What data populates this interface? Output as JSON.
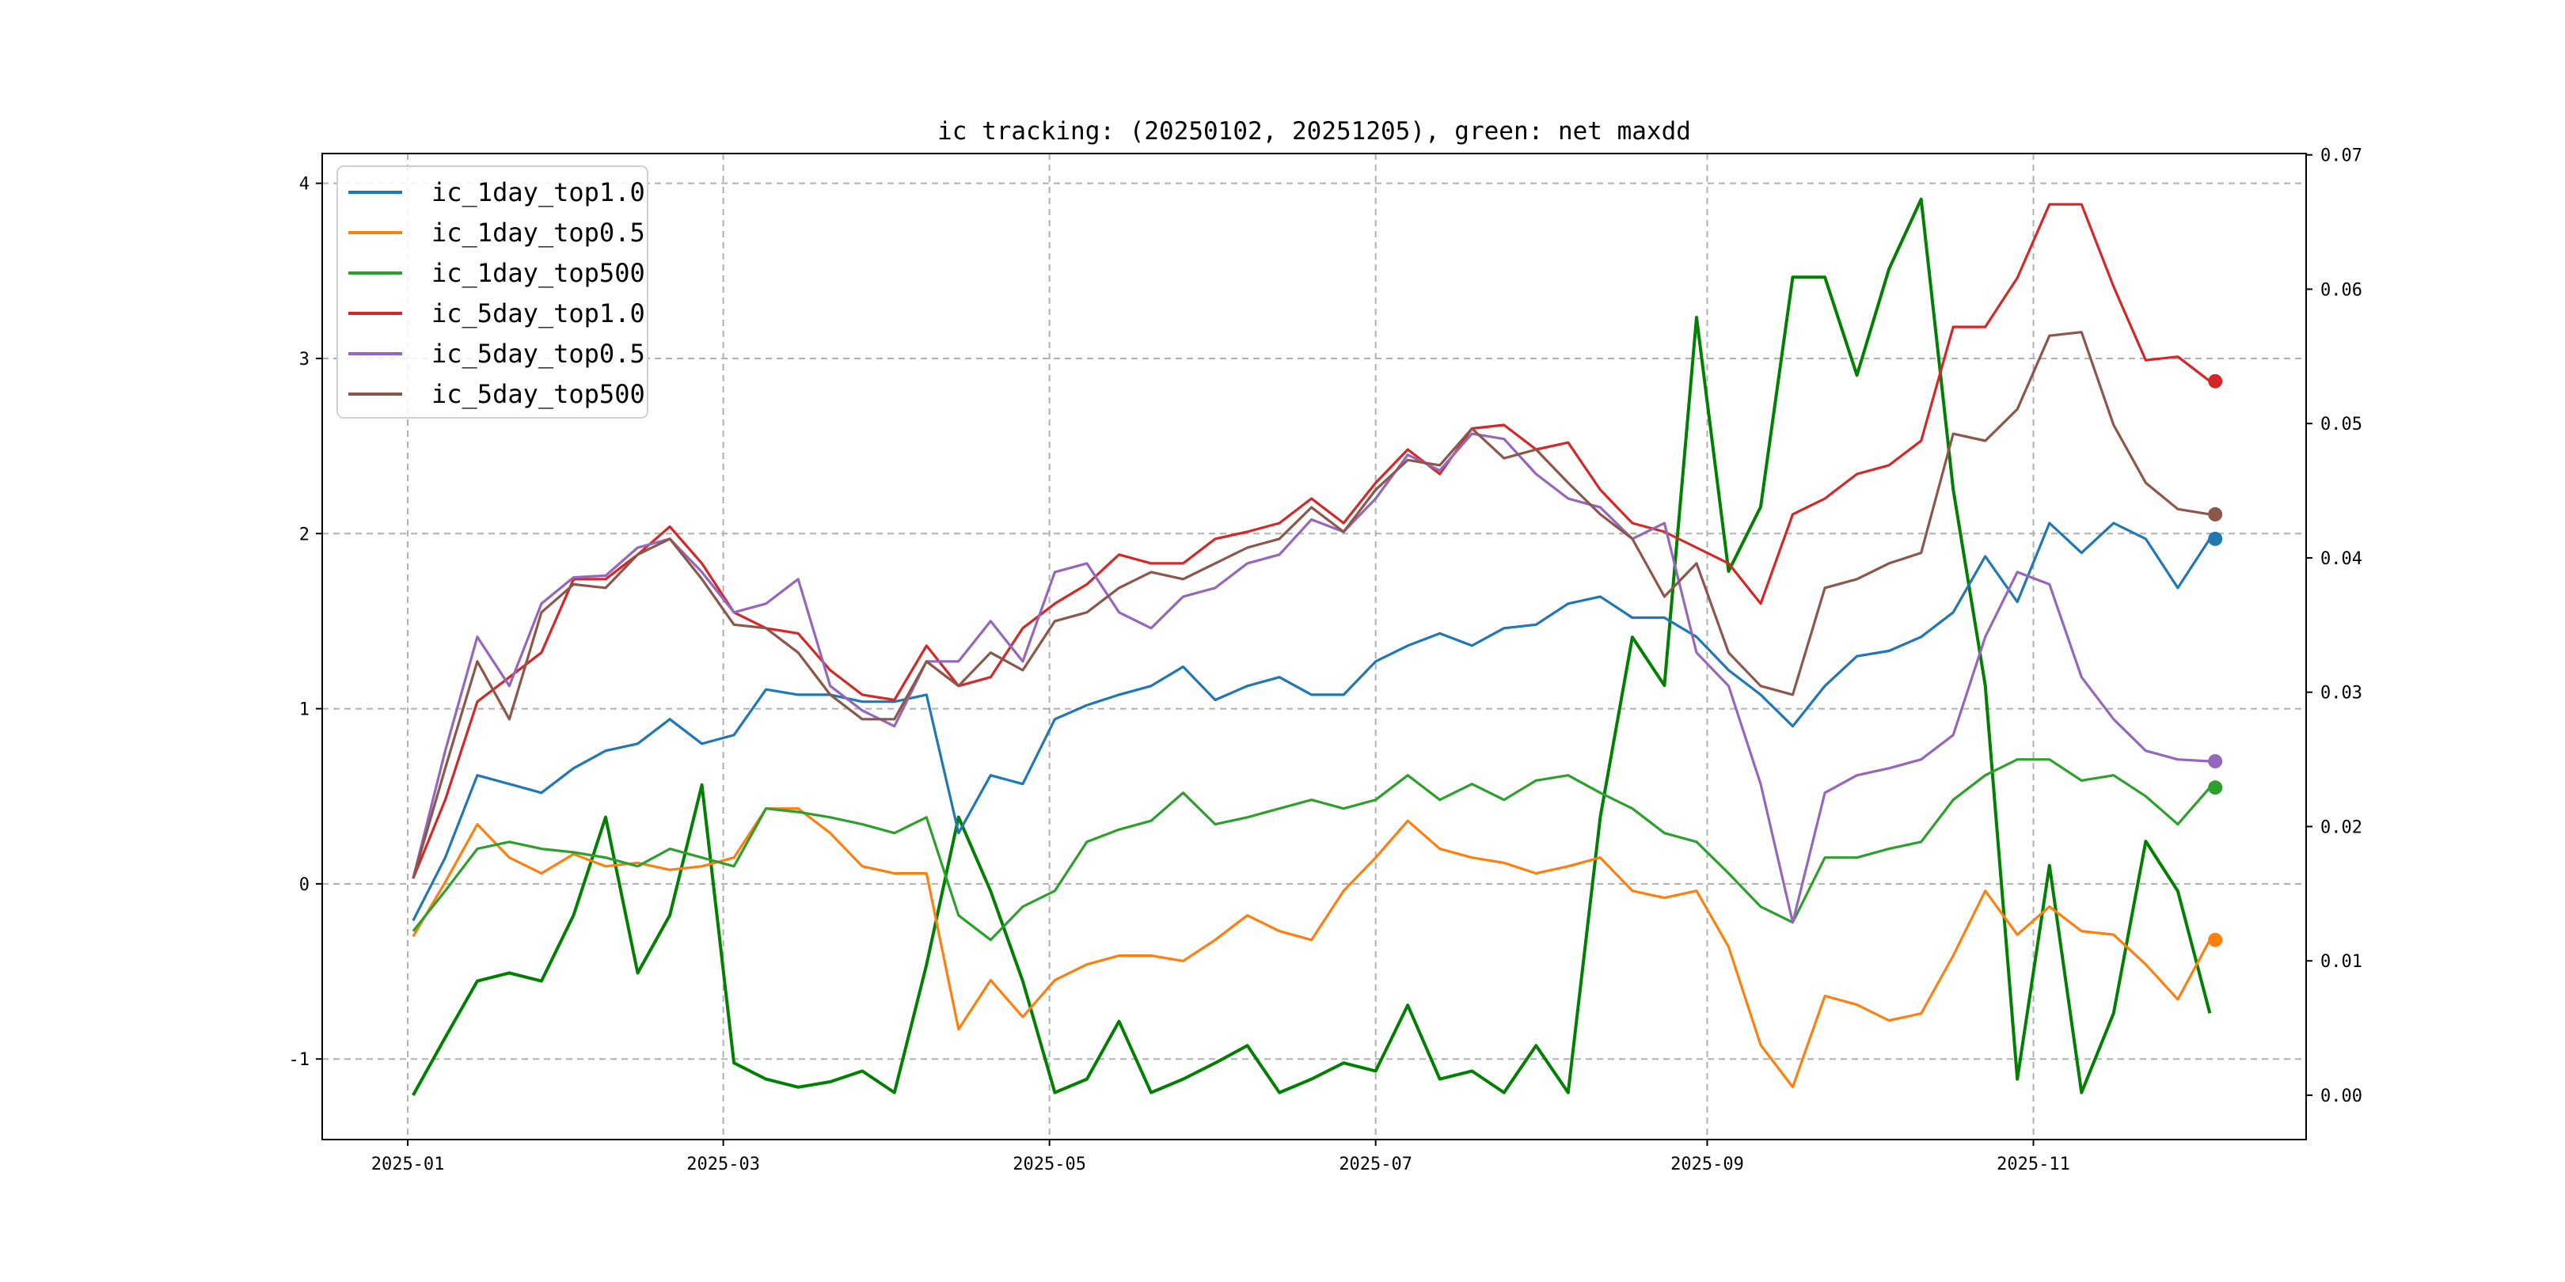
{
  "chart_data": {
    "type": "line",
    "title": "ic tracking: (20250102, 20251205), green: net maxdd",
    "xlabel": "",
    "ylabel": "",
    "x_unit": "days since 2025-01-01",
    "xlim": [
      -16,
      355
    ],
    "ylim": [
      -1.46,
      4.17
    ],
    "ylim_right": [
      -0.0033,
      0.0701
    ],
    "grid": true,
    "legend_position": "top-left",
    "x_ticks": [
      {
        "label": "2025-01",
        "day": 0
      },
      {
        "label": "2025-03",
        "day": 59
      },
      {
        "label": "2025-05",
        "day": 120
      },
      {
        "label": "2025-07",
        "day": 181
      },
      {
        "label": "2025-09",
        "day": 243
      },
      {
        "label": "2025-11",
        "day": 304
      }
    ],
    "y_ticks": [
      {
        "label": "-1",
        "value": -1
      },
      {
        "label": "0",
        "value": 0
      },
      {
        "label": "1",
        "value": 1
      },
      {
        "label": "2",
        "value": 2
      },
      {
        "label": "3",
        "value": 3
      },
      {
        "label": "4",
        "value": 4
      }
    ],
    "y_ticks_right": [
      {
        "label": "0.00",
        "value": 0
      },
      {
        "label": "0.01",
        "value": 0.01
      },
      {
        "label": "0.02",
        "value": 0.02
      },
      {
        "label": "0.03",
        "value": 0.03
      },
      {
        "label": "0.04",
        "value": 0.04
      },
      {
        "label": "0.05",
        "value": 0.05
      },
      {
        "label": "0.06",
        "value": 0.06
      },
      {
        "label": "0.07",
        "value": 0.07
      }
    ],
    "x": [
      1,
      7,
      13,
      19,
      25,
      31,
      37,
      43,
      49,
      55,
      61,
      67,
      73,
      79,
      85,
      91,
      97,
      103,
      109,
      115,
      121,
      127,
      133,
      139,
      145,
      151,
      157,
      163,
      169,
      175,
      181,
      187,
      193,
      199,
      205,
      211,
      217,
      223,
      229,
      235,
      241,
      247,
      253,
      259,
      265,
      271,
      277,
      283,
      289,
      295,
      301,
      307,
      313,
      319,
      325,
      331,
      337
    ],
    "series": [
      {
        "name": "ic_1day_top1.0",
        "color": "#1f77b4",
        "axis": "left",
        "end_marker": true,
        "values": [
          -0.21,
          0.15,
          0.62,
          0.57,
          0.52,
          0.66,
          0.76,
          0.8,
          0.94,
          0.8,
          0.85,
          1.11,
          1.08,
          1.08,
          1.04,
          1.04,
          1.08,
          0.29,
          0.62,
          0.57,
          0.94,
          1.02,
          1.08,
          1.13,
          1.24,
          1.05,
          1.13,
          1.18,
          1.08,
          1.08,
          1.27,
          1.36,
          1.43,
          1.36,
          1.46,
          1.48,
          1.6,
          1.64,
          1.52,
          1.52,
          1.41,
          1.22,
          1.08,
          0.9,
          1.13,
          1.3,
          1.33,
          1.41,
          1.55,
          1.87,
          1.61,
          2.06,
          1.89,
          2.06,
          1.97,
          1.69,
          1.97
        ]
      },
      {
        "name": "ic_1day_top0.5",
        "color": "#ff7f0e",
        "axis": "left",
        "end_marker": true,
        "values": [
          -0.3,
          0.01,
          0.34,
          0.15,
          0.06,
          0.17,
          0.1,
          0.12,
          0.08,
          0.1,
          0.15,
          0.43,
          0.43,
          0.29,
          0.1,
          0.06,
          0.06,
          -0.83,
          -0.55,
          -0.76,
          -0.55,
          -0.46,
          -0.41,
          -0.41,
          -0.44,
          -0.32,
          -0.18,
          -0.27,
          -0.32,
          -0.04,
          0.15,
          0.36,
          0.2,
          0.15,
          0.12,
          0.06,
          0.1,
          0.15,
          -0.04,
          -0.08,
          -0.04,
          -0.36,
          -0.92,
          -1.16,
          -0.64,
          -0.69,
          -0.78,
          -0.74,
          -0.41,
          -0.04,
          -0.29,
          -0.13,
          -0.27,
          -0.29,
          -0.46,
          -0.66,
          -0.32
        ]
      },
      {
        "name": "ic_1day_top500",
        "color": "#2ca02c",
        "axis": "left",
        "end_marker": true,
        "values": [
          -0.27,
          -0.04,
          0.2,
          0.24,
          0.2,
          0.18,
          0.15,
          0.1,
          0.2,
          0.15,
          0.1,
          0.43,
          0.41,
          0.38,
          0.34,
          0.29,
          0.38,
          -0.18,
          -0.32,
          -0.13,
          -0.04,
          0.24,
          0.31,
          0.36,
          0.52,
          0.34,
          0.38,
          0.43,
          0.48,
          0.43,
          0.48,
          0.62,
          0.48,
          0.57,
          0.48,
          0.59,
          0.62,
          0.52,
          0.43,
          0.29,
          0.24,
          0.06,
          -0.13,
          -0.22,
          0.15,
          0.15,
          0.2,
          0.24,
          0.48,
          0.62,
          0.71,
          0.71,
          0.59,
          0.62,
          0.5,
          0.34,
          0.55
        ]
      },
      {
        "name": "ic_5day_top1.0",
        "color": "#d62728",
        "axis": "left",
        "end_marker": true,
        "values": [
          0.03,
          0.48,
          1.04,
          1.18,
          1.32,
          1.74,
          1.74,
          1.88,
          2.04,
          1.83,
          1.55,
          1.46,
          1.43,
          1.22,
          1.08,
          1.05,
          1.36,
          1.13,
          1.18,
          1.46,
          1.6,
          1.71,
          1.88,
          1.83,
          1.83,
          1.97,
          2.01,
          2.06,
          2.2,
          2.06,
          2.29,
          2.48,
          2.34,
          2.6,
          2.62,
          2.48,
          2.52,
          2.25,
          2.06,
          2.01,
          1.92,
          1.83,
          1.6,
          2.11,
          2.2,
          2.34,
          2.39,
          2.53,
          3.18,
          3.18,
          3.46,
          3.88,
          3.88,
          3.41,
          2.99,
          3.01,
          2.87
        ]
      },
      {
        "name": "ic_5day_top0.5",
        "color": "#9467bd",
        "axis": "left",
        "end_marker": true,
        "values": [
          0.03,
          0.76,
          1.41,
          1.13,
          1.6,
          1.75,
          1.76,
          1.92,
          1.97,
          1.78,
          1.55,
          1.6,
          1.74,
          1.13,
          0.99,
          0.9,
          1.27,
          1.27,
          1.5,
          1.27,
          1.78,
          1.83,
          1.55,
          1.46,
          1.64,
          1.69,
          1.83,
          1.88,
          2.08,
          2.01,
          2.2,
          2.45,
          2.36,
          2.57,
          2.54,
          2.34,
          2.2,
          2.15,
          1.97,
          2.06,
          1.32,
          1.13,
          0.57,
          -0.22,
          0.52,
          0.62,
          0.66,
          0.71,
          0.85,
          1.41,
          1.78,
          1.71,
          1.18,
          0.94,
          0.76,
          0.71,
          0.7
        ]
      },
      {
        "name": "ic_5day_top500",
        "color": "#8c564b",
        "axis": "left",
        "end_marker": true,
        "values": [
          0.03,
          0.66,
          1.27,
          0.94,
          1.55,
          1.71,
          1.69,
          1.88,
          1.97,
          1.74,
          1.48,
          1.46,
          1.32,
          1.08,
          0.94,
          0.94,
          1.27,
          1.13,
          1.32,
          1.22,
          1.5,
          1.55,
          1.69,
          1.78,
          1.74,
          1.83,
          1.92,
          1.97,
          2.15,
          2.01,
          2.25,
          2.42,
          2.39,
          2.6,
          2.43,
          2.48,
          2.29,
          2.11,
          1.97,
          1.64,
          1.83,
          1.32,
          1.13,
          1.08,
          1.69,
          1.74,
          1.83,
          1.89,
          2.57,
          2.53,
          2.71,
          3.13,
          3.15,
          2.62,
          2.29,
          2.14,
          2.11
        ]
      },
      {
        "name": "net maxdd",
        "color": "#008000",
        "axis": "right",
        "end_marker": false,
        "in_legend": false,
        "values": [
          0,
          0.0043,
          0.0085,
          0.0091,
          0.0085,
          0.0134,
          0.0207,
          0.0091,
          0.0134,
          0.0231,
          0.0024,
          0.0012,
          0.0006,
          0.001,
          0.0018,
          0.0002,
          0.0097,
          0.0207,
          0.0152,
          0.0085,
          0.0002,
          0.0012,
          0.0055,
          0.0002,
          0.0012,
          0.0024,
          0.0037,
          0.0002,
          0.0012,
          0.0024,
          0.0018,
          0.0067,
          0.0012,
          0.0018,
          0.0002,
          0.0037,
          0.0002,
          0.0207,
          0.0341,
          0.0305,
          0.0579,
          0.039,
          0.0438,
          0.0609,
          0.0609,
          0.0536,
          0.0615,
          0.0667,
          0.0451,
          0.0305,
          0.0012,
          0.0171,
          0.0002,
          0.0061,
          0.0189,
          0.0152,
          0.0061
        ]
      }
    ]
  }
}
